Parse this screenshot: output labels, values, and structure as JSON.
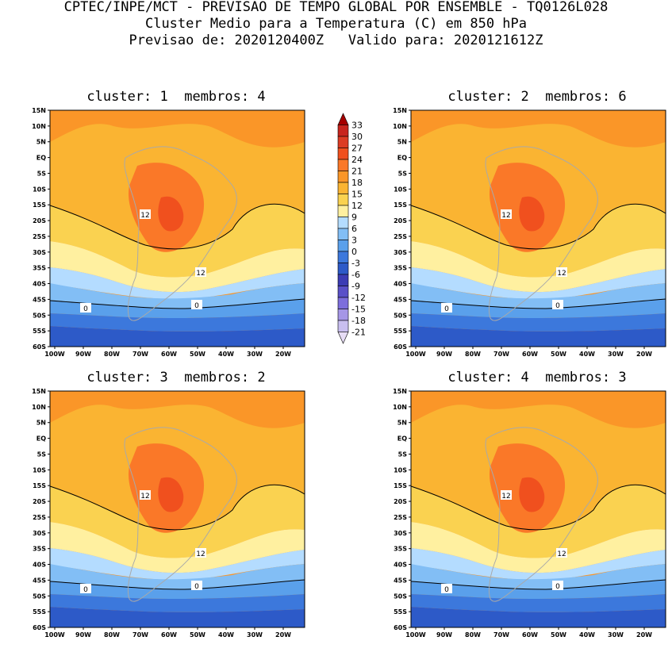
{
  "header": {
    "line1": "CPTEC/INPE/MCT - PREVISAO DE TEMPO GLOBAL POR ENSEMBLE - TQ0126L028",
    "line2": "Cluster Medio para a Temperatura (C) em 850 hPa",
    "line3": "Previsao de: 2020120400Z   Valido para: 2020121612Z"
  },
  "panels": [
    {
      "title": "cluster: 1  membros: 4",
      "contour_labels": [
        "12",
        "12",
        "0",
        "0"
      ]
    },
    {
      "title": "cluster: 2  membros: 6",
      "contour_labels": [
        "12",
        "12",
        "0",
        "0"
      ]
    },
    {
      "title": "cluster: 3  membros: 2",
      "contour_labels": [
        "12",
        "12",
        "0",
        "0"
      ]
    },
    {
      "title": "cluster: 4  membros: 3",
      "contour_labels": [
        "12",
        "12",
        "0",
        "0"
      ]
    }
  ],
  "axes": {
    "lat_ticks": [
      "15N",
      "10N",
      "5N",
      "EQ",
      "5S",
      "10S",
      "15S",
      "20S",
      "25S",
      "30S",
      "35S",
      "40S",
      "45S",
      "50S",
      "55S",
      "60S"
    ],
    "lon_ticks": [
      "100W",
      "90W",
      "80W",
      "70W",
      "60W",
      "50W",
      "40W",
      "30W",
      "20W"
    ]
  },
  "colorbar": {
    "labels": [
      "33",
      "30",
      "27",
      "24",
      "21",
      "18",
      "15",
      "12",
      "9",
      "6",
      "3",
      "0",
      "-3",
      "-6",
      "-9",
      "-12",
      "-15",
      "-18",
      "-21"
    ],
    "colors": [
      "#a50000",
      "#c8251e",
      "#dc3c24",
      "#f0501e",
      "#fa7828",
      "#fa9628",
      "#fab432",
      "#fad250",
      "#fff0a0",
      "#b4dcff",
      "#82bef5",
      "#5aa0eb",
      "#3c78dc",
      "#2d5ac8",
      "#3c3cb4",
      "#5a50c8",
      "#7d6edc",
      "#a596e6",
      "#c8beef",
      "#e6dcf5"
    ]
  }
}
